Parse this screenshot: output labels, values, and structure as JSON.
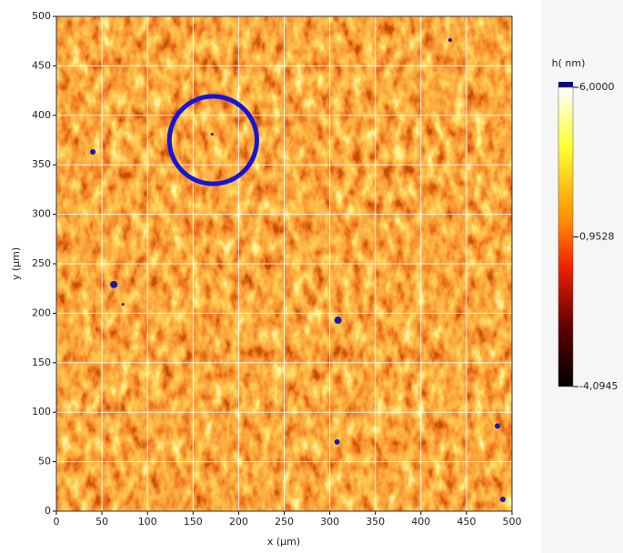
{
  "chart_data": {
    "type": "heatmap",
    "xlabel": "x (µm)",
    "ylabel": "y (µm)",
    "xlim": [
      0,
      500
    ],
    "ylim": [
      0,
      500
    ],
    "xticks": [
      0,
      50,
      100,
      150,
      200,
      250,
      300,
      350,
      400,
      450,
      500
    ],
    "yticks": [
      0,
      50,
      100,
      150,
      200,
      250,
      300,
      350,
      400,
      450,
      500
    ],
    "grid": true,
    "colorbar": {
      "title": "h( nm)",
      "clim": [
        -4.0945,
        6
      ],
      "ticks": [
        {
          "value": 6,
          "label": "6,0000"
        },
        {
          "value": 0.9528,
          "label": "0,9528"
        },
        {
          "value": -4.0945,
          "label": "-4,0945"
        }
      ]
    },
    "points": {
      "color": "#1a1aa8",
      "x": [
        40,
        63,
        73,
        309,
        308,
        484,
        490,
        432,
        171
      ],
      "y": [
        363,
        229,
        209,
        193,
        70,
        86,
        12,
        476,
        381
      ],
      "size": [
        3,
        4,
        1.5,
        4,
        3,
        3,
        3,
        2,
        1.5
      ]
    },
    "circle": {
      "x": 172,
      "y": 375,
      "r": 48,
      "color": "#1515d8"
    }
  }
}
